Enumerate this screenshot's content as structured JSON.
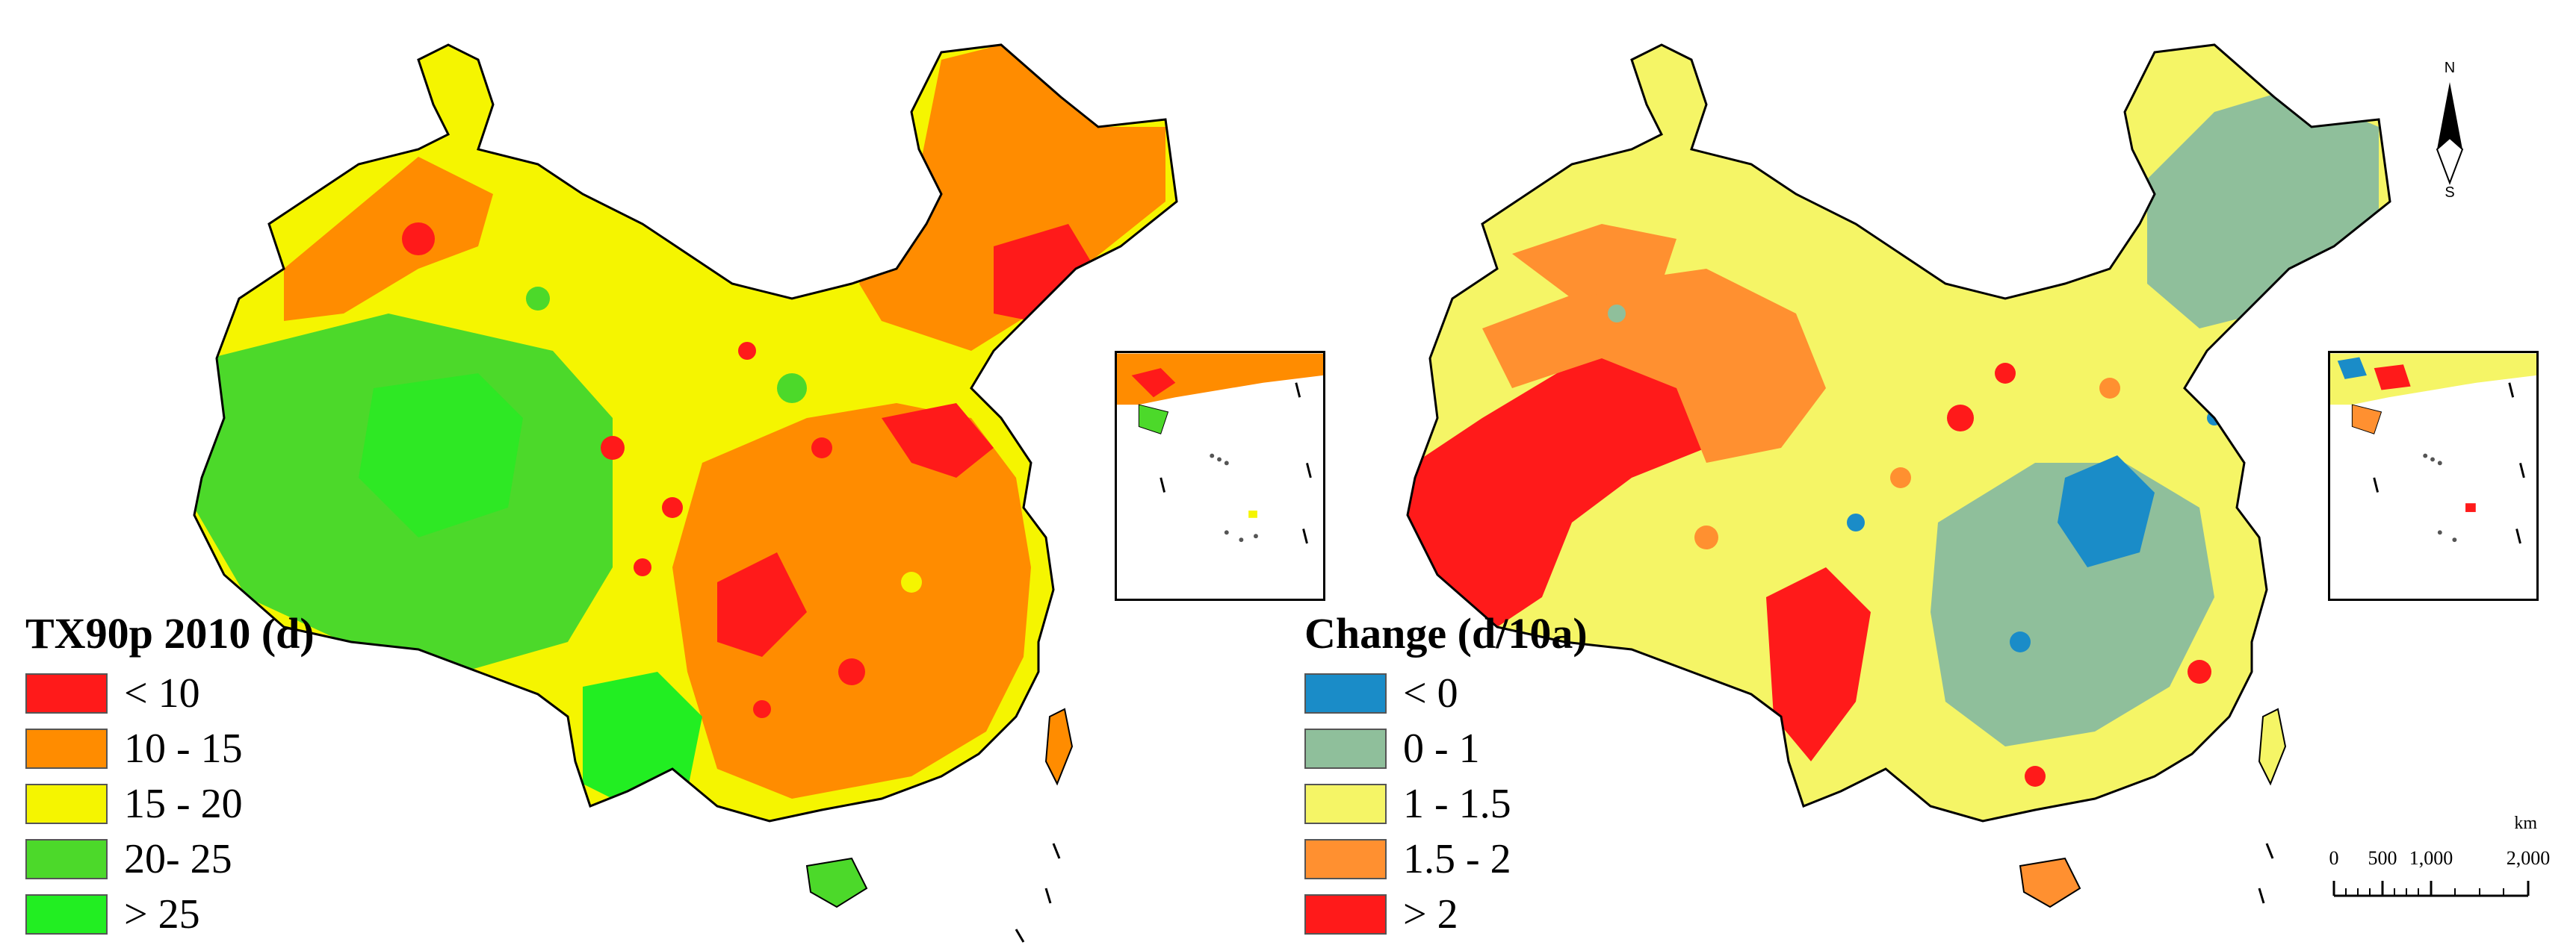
{
  "colors": {
    "tx_lt10": "#ff1a1a",
    "tx_10_15": "#ff8c00",
    "tx_15_20": "#f5f500",
    "tx_20_25": "#4cd92a",
    "tx_gt25": "#22ee22",
    "ch_lt0": "#1a8cc8",
    "ch_0_1": "#8fbf9b",
    "ch_1_15": "#f5f566",
    "ch_15_2": "#ff9030",
    "ch_gt2": "#ff1a1a"
  },
  "left_map": {
    "legend": {
      "title": "TX90p 2010 (d)",
      "items": [
        {
          "label": "< 10",
          "color": "#ff1a1a"
        },
        {
          "label": "10 - 15",
          "color": "#ff8c00"
        },
        {
          "label": "15 - 20",
          "color": "#f5f500"
        },
        {
          "label": "20- 25",
          "color": "#4cd92a"
        },
        {
          "label": "> 25",
          "color": "#22ee22"
        }
      ]
    }
  },
  "right_map": {
    "legend": {
      "title": "Change (d/10a)",
      "items": [
        {
          "label": "< 0",
          "color": "#1a8cc8"
        },
        {
          "label": "0 - 1",
          "color": "#8fbf9b"
        },
        {
          "label": "1 - 1.5",
          "color": "#f5f566"
        },
        {
          "label": "1.5 - 2",
          "color": "#ff9030"
        },
        {
          "label": "> 2",
          "color": "#ff1a1a"
        }
      ]
    },
    "north_arrow": {
      "n_label": "N",
      "s_label": "S",
      "icon": "north-arrow-icon"
    },
    "scale_bar": {
      "unit": "km",
      "ticks": [
        "0",
        "500",
        "1,000",
        "2,000"
      ]
    }
  }
}
